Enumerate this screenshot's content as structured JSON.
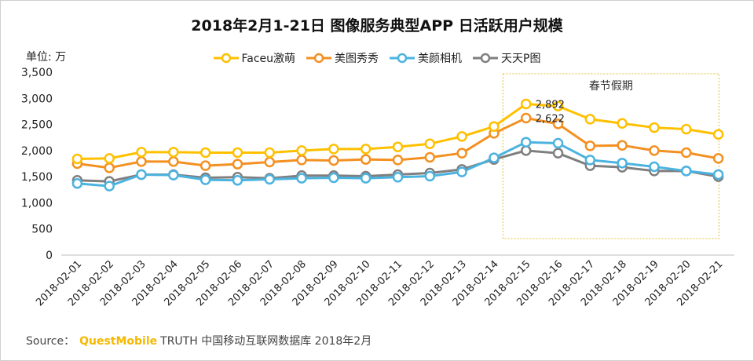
{
  "title": "2018年2月1-21日 图像服务典型APP 日活跃用户规模",
  "unit_label": "单位: 万",
  "source": {
    "prefix": "Source：",
    "brand": "QuestMobile",
    "rest": "TRUTH 中国移动互联网数据库 2018年2月"
  },
  "colors": {
    "faceu": "#ffc000",
    "meitu": "#f39021",
    "beautycam": "#4bb3e0",
    "tiantian": "#7f7f7f",
    "box": "#e0c030"
  },
  "chart_data": {
    "type": "line",
    "title": "2018年2月1-21日 图像服务典型APP 日活跃用户规模",
    "ylabel": "单位: 万",
    "xlabel": "",
    "ylim": [
      0,
      3500
    ],
    "yticks": [
      "0",
      "500",
      "1,000",
      "1,500",
      "2,000",
      "2,500",
      "3,000",
      "3,500"
    ],
    "ytick_values": [
      0,
      500,
      1000,
      1500,
      2000,
      2500,
      3000,
      3500
    ],
    "grid": false,
    "legend": "top",
    "categories": [
      "2018-02-01",
      "2018-02-02",
      "2018-02-03",
      "2018-02-04",
      "2018-02-05",
      "2018-02-06",
      "2018-02-07",
      "2018-02-08",
      "2018-02-09",
      "2018-02-10",
      "2018-02-11",
      "2018-02-12",
      "2018-02-13",
      "2018-02-14",
      "2018-02-15",
      "2018-02-16",
      "2018-02-17",
      "2018-02-18",
      "2018-02-19",
      "2018-02-20",
      "2018-02-21"
    ],
    "series": [
      {
        "name": "Faceu激萌",
        "color": "#ffc000",
        "values": [
          1840,
          1850,
          1970,
          1970,
          1960,
          1960,
          1960,
          2000,
          2030,
          2030,
          2070,
          2130,
          2270,
          2460,
          2892,
          2850,
          2600,
          2520,
          2440,
          2410,
          2310
        ]
      },
      {
        "name": "美图秀秀",
        "color": "#f39021",
        "values": [
          1750,
          1670,
          1790,
          1790,
          1710,
          1740,
          1780,
          1820,
          1810,
          1830,
          1820,
          1870,
          1950,
          2330,
          2622,
          2510,
          2090,
          2100,
          2000,
          1960,
          1850
        ]
      },
      {
        "name": "美颜相机",
        "color": "#4bb3e0",
        "values": [
          1370,
          1320,
          1540,
          1530,
          1440,
          1430,
          1450,
          1470,
          1480,
          1470,
          1490,
          1510,
          1590,
          1860,
          2160,
          2140,
          1820,
          1760,
          1690,
          1610,
          1540
        ]
      },
      {
        "name": "天天P图",
        "color": "#7f7f7f",
        "values": [
          1430,
          1410,
          1540,
          1540,
          1480,
          1490,
          1470,
          1520,
          1520,
          1510,
          1540,
          1570,
          1640,
          1830,
          2000,
          1950,
          1710,
          1680,
          1610,
          1610,
          1500
        ]
      }
    ],
    "annotations": [
      {
        "text": "春节假期",
        "from": "2018-02-15",
        "to": "2018-02-21"
      },
      {
        "text": "2,892",
        "series": "Faceu激萌",
        "x": "2018-02-15",
        "y": 2892
      },
      {
        "text": "2,622",
        "series": "美图秀秀",
        "x": "2018-02-15",
        "y": 2622
      }
    ]
  }
}
